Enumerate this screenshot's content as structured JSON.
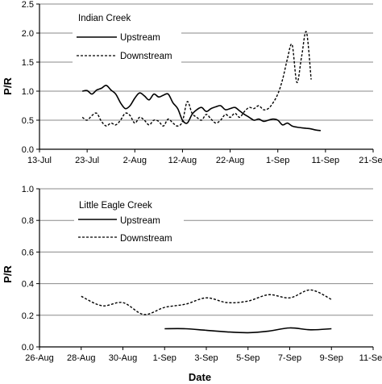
{
  "chart_data": [
    {
      "type": "line",
      "title": "Indian Creek",
      "ylabel": "P/R",
      "xlabel": "",
      "ylim": [
        0,
        2.5
      ],
      "yticks": [
        "0.0",
        "0.5",
        "1.0",
        "1.5",
        "2.0",
        "2.5"
      ],
      "xlim": [
        "2003-07-13",
        "2003-09-21"
      ],
      "xticks": [
        "13-Jul",
        "23-Jul",
        "2-Aug",
        "12-Aug",
        "22-Aug",
        "1-Sep",
        "11-Sep",
        "21-Sep"
      ],
      "grid": "horizontal",
      "legend": "top-left",
      "series": [
        {
          "name": "Upstream",
          "style": "solid",
          "x": [
            "2003-07-22",
            "2003-07-23",
            "2003-07-24",
            "2003-07-25",
            "2003-07-26",
            "2003-07-27",
            "2003-07-28",
            "2003-07-29",
            "2003-07-30",
            "2003-07-31",
            "2003-08-01",
            "2003-08-02",
            "2003-08-03",
            "2003-08-04",
            "2003-08-05",
            "2003-08-06",
            "2003-08-07",
            "2003-08-08",
            "2003-08-09",
            "2003-08-10",
            "2003-08-11",
            "2003-08-12",
            "2003-08-13",
            "2003-08-14",
            "2003-08-15",
            "2003-08-16",
            "2003-08-17",
            "2003-08-18",
            "2003-08-19",
            "2003-08-20",
            "2003-08-21",
            "2003-08-22",
            "2003-08-23",
            "2003-08-24",
            "2003-08-25",
            "2003-08-26",
            "2003-08-27",
            "2003-08-28",
            "2003-08-29",
            "2003-08-30",
            "2003-08-31",
            "2003-09-01",
            "2003-09-02",
            "2003-09-03",
            "2003-09-04",
            "2003-09-05",
            "2003-09-06",
            "2003-09-07",
            "2003-09-08",
            "2003-09-09",
            "2003-09-10"
          ],
          "values": [
            1.0,
            1.01,
            0.95,
            1.02,
            1.05,
            1.1,
            1.02,
            0.95,
            0.8,
            0.7,
            0.75,
            0.88,
            0.97,
            0.92,
            0.85,
            0.95,
            0.9,
            0.93,
            0.95,
            0.8,
            0.7,
            0.5,
            0.45,
            0.6,
            0.68,
            0.72,
            0.65,
            0.7,
            0.73,
            0.75,
            0.68,
            0.7,
            0.72,
            0.66,
            0.6,
            0.55,
            0.5,
            0.52,
            0.48,
            0.5,
            0.52,
            0.5,
            0.42,
            0.45,
            0.4,
            0.38,
            0.37,
            0.36,
            0.35,
            0.33,
            0.32
          ]
        },
        {
          "name": "Downstream",
          "style": "dashed",
          "x": [
            "2003-07-22",
            "2003-07-23",
            "2003-07-24",
            "2003-07-25",
            "2003-07-26",
            "2003-07-27",
            "2003-07-28",
            "2003-07-29",
            "2003-07-30",
            "2003-07-31",
            "2003-08-01",
            "2003-08-02",
            "2003-08-03",
            "2003-08-04",
            "2003-08-05",
            "2003-08-06",
            "2003-08-07",
            "2003-08-08",
            "2003-08-09",
            "2003-08-10",
            "2003-08-11",
            "2003-08-12",
            "2003-08-13",
            "2003-08-14",
            "2003-08-15",
            "2003-08-16",
            "2003-08-17",
            "2003-08-18",
            "2003-08-19",
            "2003-08-20",
            "2003-08-21",
            "2003-08-22",
            "2003-08-23",
            "2003-08-24",
            "2003-08-25",
            "2003-08-26",
            "2003-08-27",
            "2003-08-28",
            "2003-08-29",
            "2003-08-30",
            "2003-08-31",
            "2003-09-01",
            "2003-09-02",
            "2003-09-03",
            "2003-09-04",
            "2003-09-05",
            "2003-09-06",
            "2003-09-07",
            "2003-09-08"
          ],
          "values": [
            0.55,
            0.5,
            0.58,
            0.62,
            0.48,
            0.4,
            0.45,
            0.42,
            0.5,
            0.62,
            0.58,
            0.45,
            0.55,
            0.5,
            0.42,
            0.5,
            0.48,
            0.4,
            0.52,
            0.45,
            0.4,
            0.48,
            0.82,
            0.62,
            0.55,
            0.5,
            0.6,
            0.52,
            0.45,
            0.5,
            0.6,
            0.55,
            0.62,
            0.55,
            0.65,
            0.72,
            0.7,
            0.75,
            0.68,
            0.7,
            0.8,
            0.95,
            1.2,
            1.55,
            1.8,
            1.15,
            1.6,
            2.02,
            1.2
          ]
        }
      ]
    },
    {
      "type": "line",
      "title": "Little Eagle Creek",
      "ylabel": "P/R",
      "xlabel": "Date",
      "ylim": [
        0,
        1.0
      ],
      "yticks": [
        "0.0",
        "0.2",
        "0.4",
        "0.6",
        "0.8",
        "1.0"
      ],
      "xlim": [
        "2003-08-26",
        "2003-09-11"
      ],
      "xticks": [
        "26-Aug",
        "28-Aug",
        "30-Aug",
        "1-Sep",
        "3-Sep",
        "5-Sep",
        "7-Sep",
        "9-Sep",
        "11-Sep"
      ],
      "grid": "horizontal",
      "legend": "top-left",
      "series": [
        {
          "name": "Upstream",
          "style": "solid",
          "x": [
            "2003-09-01",
            "2003-09-02",
            "2003-09-03",
            "2003-09-04",
            "2003-09-05",
            "2003-09-06",
            "2003-09-07",
            "2003-09-08",
            "2003-09-09"
          ],
          "values": [
            0.115,
            0.115,
            0.105,
            0.095,
            0.09,
            0.1,
            0.12,
            0.108,
            0.115
          ]
        },
        {
          "name": "Downstream",
          "style": "dashed",
          "x": [
            "2003-08-28",
            "2003-08-29",
            "2003-08-30",
            "2003-08-31",
            "2003-09-01",
            "2003-09-02",
            "2003-09-03",
            "2003-09-04",
            "2003-09-05",
            "2003-09-06",
            "2003-09-07",
            "2003-09-08",
            "2003-09-09"
          ],
          "values": [
            0.32,
            0.26,
            0.28,
            0.205,
            0.25,
            0.27,
            0.31,
            0.28,
            0.29,
            0.33,
            0.31,
            0.36,
            0.3
          ]
        }
      ]
    }
  ]
}
